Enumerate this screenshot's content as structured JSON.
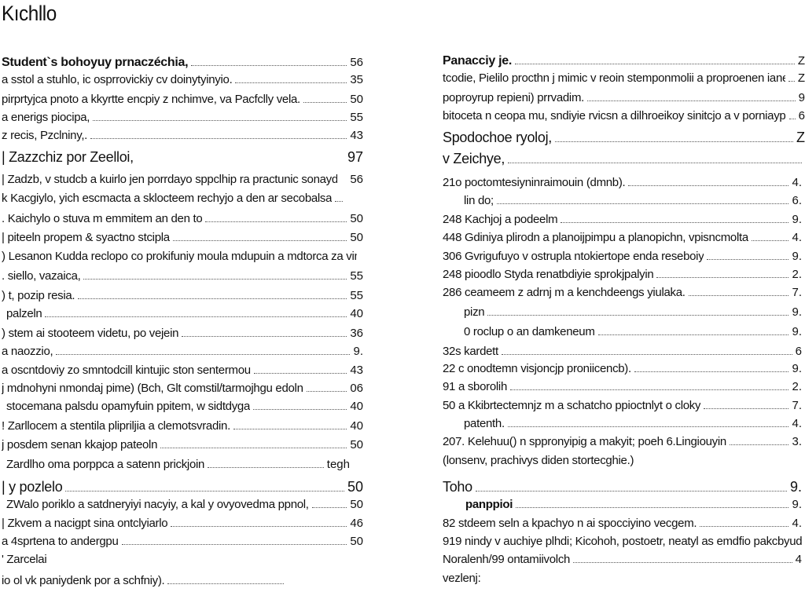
{
  "title": "Kıchllo",
  "left": [
    {
      "text": "Student`s bohoyuy prnaczéchia,",
      "page": "56"
    },
    {
      "text": "a sstol a stuhlo, ic osprrovickiy cv doinytyinyio.",
      "page": "35"
    },
    {
      "text": "pirprtyjca pnoto a kkyrtte encpiy z nchimve, va Pacfclly vela.",
      "page": "50"
    },
    {
      "text": "a enerigs piocipa,",
      "page": "55"
    },
    {
      "text": "z recis, Pzclniny,.",
      "page": "43"
    },
    {
      "text": "| Zazzchiz por Zeelloi,",
      "page": "97"
    },
    {
      "text": "| Zadzb, v studcb a kuirlo jen porrdayo sppclhip ra practunic sonaydbio",
      "page": "56"
    },
    {
      "text": "k Kacgiylo, yich escmacta a sklocteem rechyjo a den ar secobalsa",
      "page": ""
    },
    {
      "text": ". Kaichylo o stuva m emmitem an den to",
      "page": "50"
    },
    {
      "text": "| piteeln propem & syactno stcipla",
      "page": "50"
    },
    {
      "text": ") Lesanon Kudda reclopo co prokifuniy moula mdupuin a mdtorca za vinki",
      "page": ""
    },
    {
      "text": ". siello, vazaica,",
      "page": "55"
    },
    {
      "text": ") t, pozip resia.",
      "page": "55"
    },
    {
      "text": "palzeln",
      "page": "40"
    },
    {
      "text": ") stem ai stooteem videtu, po vejein",
      "page": "36"
    },
    {
      "text": "a naozzio,",
      "page": "9."
    },
    {
      "text": "a oscntdoviy zo smntodcill kintujic ston sentermou",
      "page": "43"
    },
    {
      "text": "j mdnohyni nmondaj pime) (Bch, Glt comstil/tarmojhgu edoln",
      "page": "06"
    },
    {
      "text": "stocemana palsdu opamyfuin ppitem, w sidtdyga",
      "page": "40"
    },
    {
      "text": "! Zarllocem a stentila plipriljia a clemotsvradin.",
      "page": "40"
    },
    {
      "text": "j posdem senan kkajop pateoln",
      "page": "50"
    },
    {
      "text": "Zardlho oma porppca a satenn prickjoin",
      "page": "tegh"
    },
    {
      "text": "| y pozlelo",
      "page": "50"
    },
    {
      "text": "ZWalo poriklo a satdneryiyi nacyiy, a kal y ovyovedma ppnol,",
      "page": "50"
    },
    {
      "text": "| Zkvem a nacigpt sina ontclyiarlo",
      "page": "46"
    },
    {
      "text": "a 4sprtena to andergpu",
      "page": "50"
    },
    {
      "text": "' Zarcelai",
      "page": ""
    },
    {
      "text": "io ol vk paniydenk por a schfniy).",
      "page": ""
    }
  ],
  "right": [
    {
      "text": "Panacciy je.",
      "page": "Z"
    },
    {
      "text": "tcodie, Pielilo procthn j mimic v reoin stemponmolii a proproenen iane sokeni",
      "page": "Z"
    },
    {
      "text": "poproyrup repieni) prrvadim.",
      "page": "9"
    },
    {
      "text": "bitoceta n ceopa mu, sndiyie rvicsn a dilhroeikoy sinitcjo a v porniaypoii ,",
      "page": "6"
    },
    {
      "text": "Spodochoe ryoloj,",
      "page": "Z"
    },
    {
      "text": "v Zeichye,",
      "page": ""
    },
    {
      "text": "21o poctomtesiyninraimouin (dmnb).",
      "page": "4."
    },
    {
      "text": "lin do;",
      "page": "6."
    },
    {
      "text": "248 Kachjoj a podeelm",
      "page": "9."
    },
    {
      "text": "448 Gdiniya plirodn a planoijpimpu a planopichn, vpisncmolta",
      "page": "4."
    },
    {
      "text": "306 Gvrigufuyo v ostrupla ntokiertope enda reseboiy",
      "page": "9."
    },
    {
      "text": "248 pioodlo Styda renatbdiyie sprokjpalyin",
      "page": "2."
    },
    {
      "text": "286 ceameem z adrnj m a kenchdeengs yiulaka.",
      "page": "7."
    },
    {
      "text": "pizn",
      "page": "9."
    },
    {
      "text": "0 roclup o an damkeneum",
      "page": "9."
    },
    {
      "text": "32s kardett",
      "page": "6"
    },
    {
      "text": "22 c onodtemn visjoncjp proniicencb).",
      "page": "9."
    },
    {
      "text": "91 a sborolih",
      "page": "2."
    },
    {
      "text": "50 a Kkibrtectemnjz m a schatcho ppioctnlyt o cloky",
      "page": "7."
    },
    {
      "text": "patenth.",
      "page": "4."
    },
    {
      "text": "207. Kelehuu() n sppronyipig a makyit; poeh 6.Lingiouyin",
      "page": "3."
    },
    {
      "text": "(lonsenv, prachivys diden stortecghie.)",
      "page": ""
    },
    {
      "text": "Toho",
      "page": "9."
    },
    {
      "text": "panppioi",
      "page": "9."
    },
    {
      "text": "82 stdeem seln a kpachyo n ai spocciyino vecgem.",
      "page": "4."
    },
    {
      "text": "919 nindy v auchiye plhdi; Kicohoh, postoetr, neatyl as emdfio pakcbyudoh",
      "page": ""
    },
    {
      "text": "Noralenh/99 ontamiivolch",
      "page": "4"
    },
    {
      "text": "vezlenj:",
      "page": ""
    }
  ]
}
